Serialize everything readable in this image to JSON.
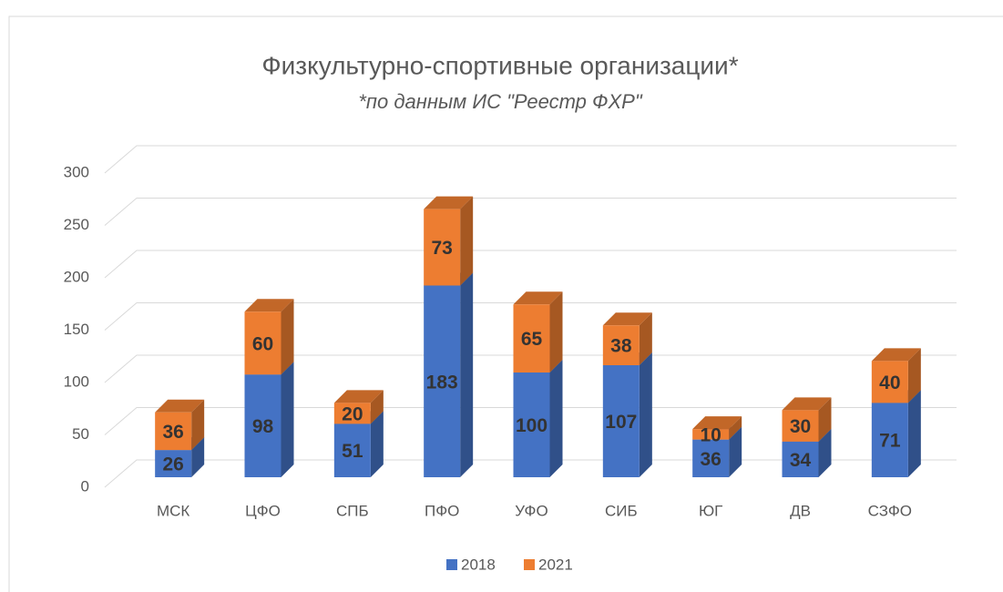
{
  "chart_data": {
    "type": "bar",
    "stacked": true,
    "three_d": true,
    "title": "Физкультурно-спортивные организации*",
    "subtitle": "*по данным ИС \"Реестр ФХР\"",
    "categories": [
      "МСК",
      "ЦФО",
      "СПБ",
      "ПФО",
      "УФО",
      "СИБ",
      "ЮГ",
      "ДВ",
      "СЗФО"
    ],
    "series": [
      {
        "name": "2018",
        "color": "#4472c4",
        "values": [
          26,
          98,
          51,
          183,
          100,
          107,
          36,
          34,
          71
        ]
      },
      {
        "name": "2021",
        "color": "#ed7d31",
        "values": [
          36,
          60,
          20,
          73,
          65,
          38,
          10,
          30,
          40
        ]
      }
    ],
    "ylim": [
      0,
      300
    ],
    "yticks": [
      0,
      50,
      100,
      150,
      200,
      250,
      300
    ],
    "grid": true,
    "legend": "bottom"
  }
}
